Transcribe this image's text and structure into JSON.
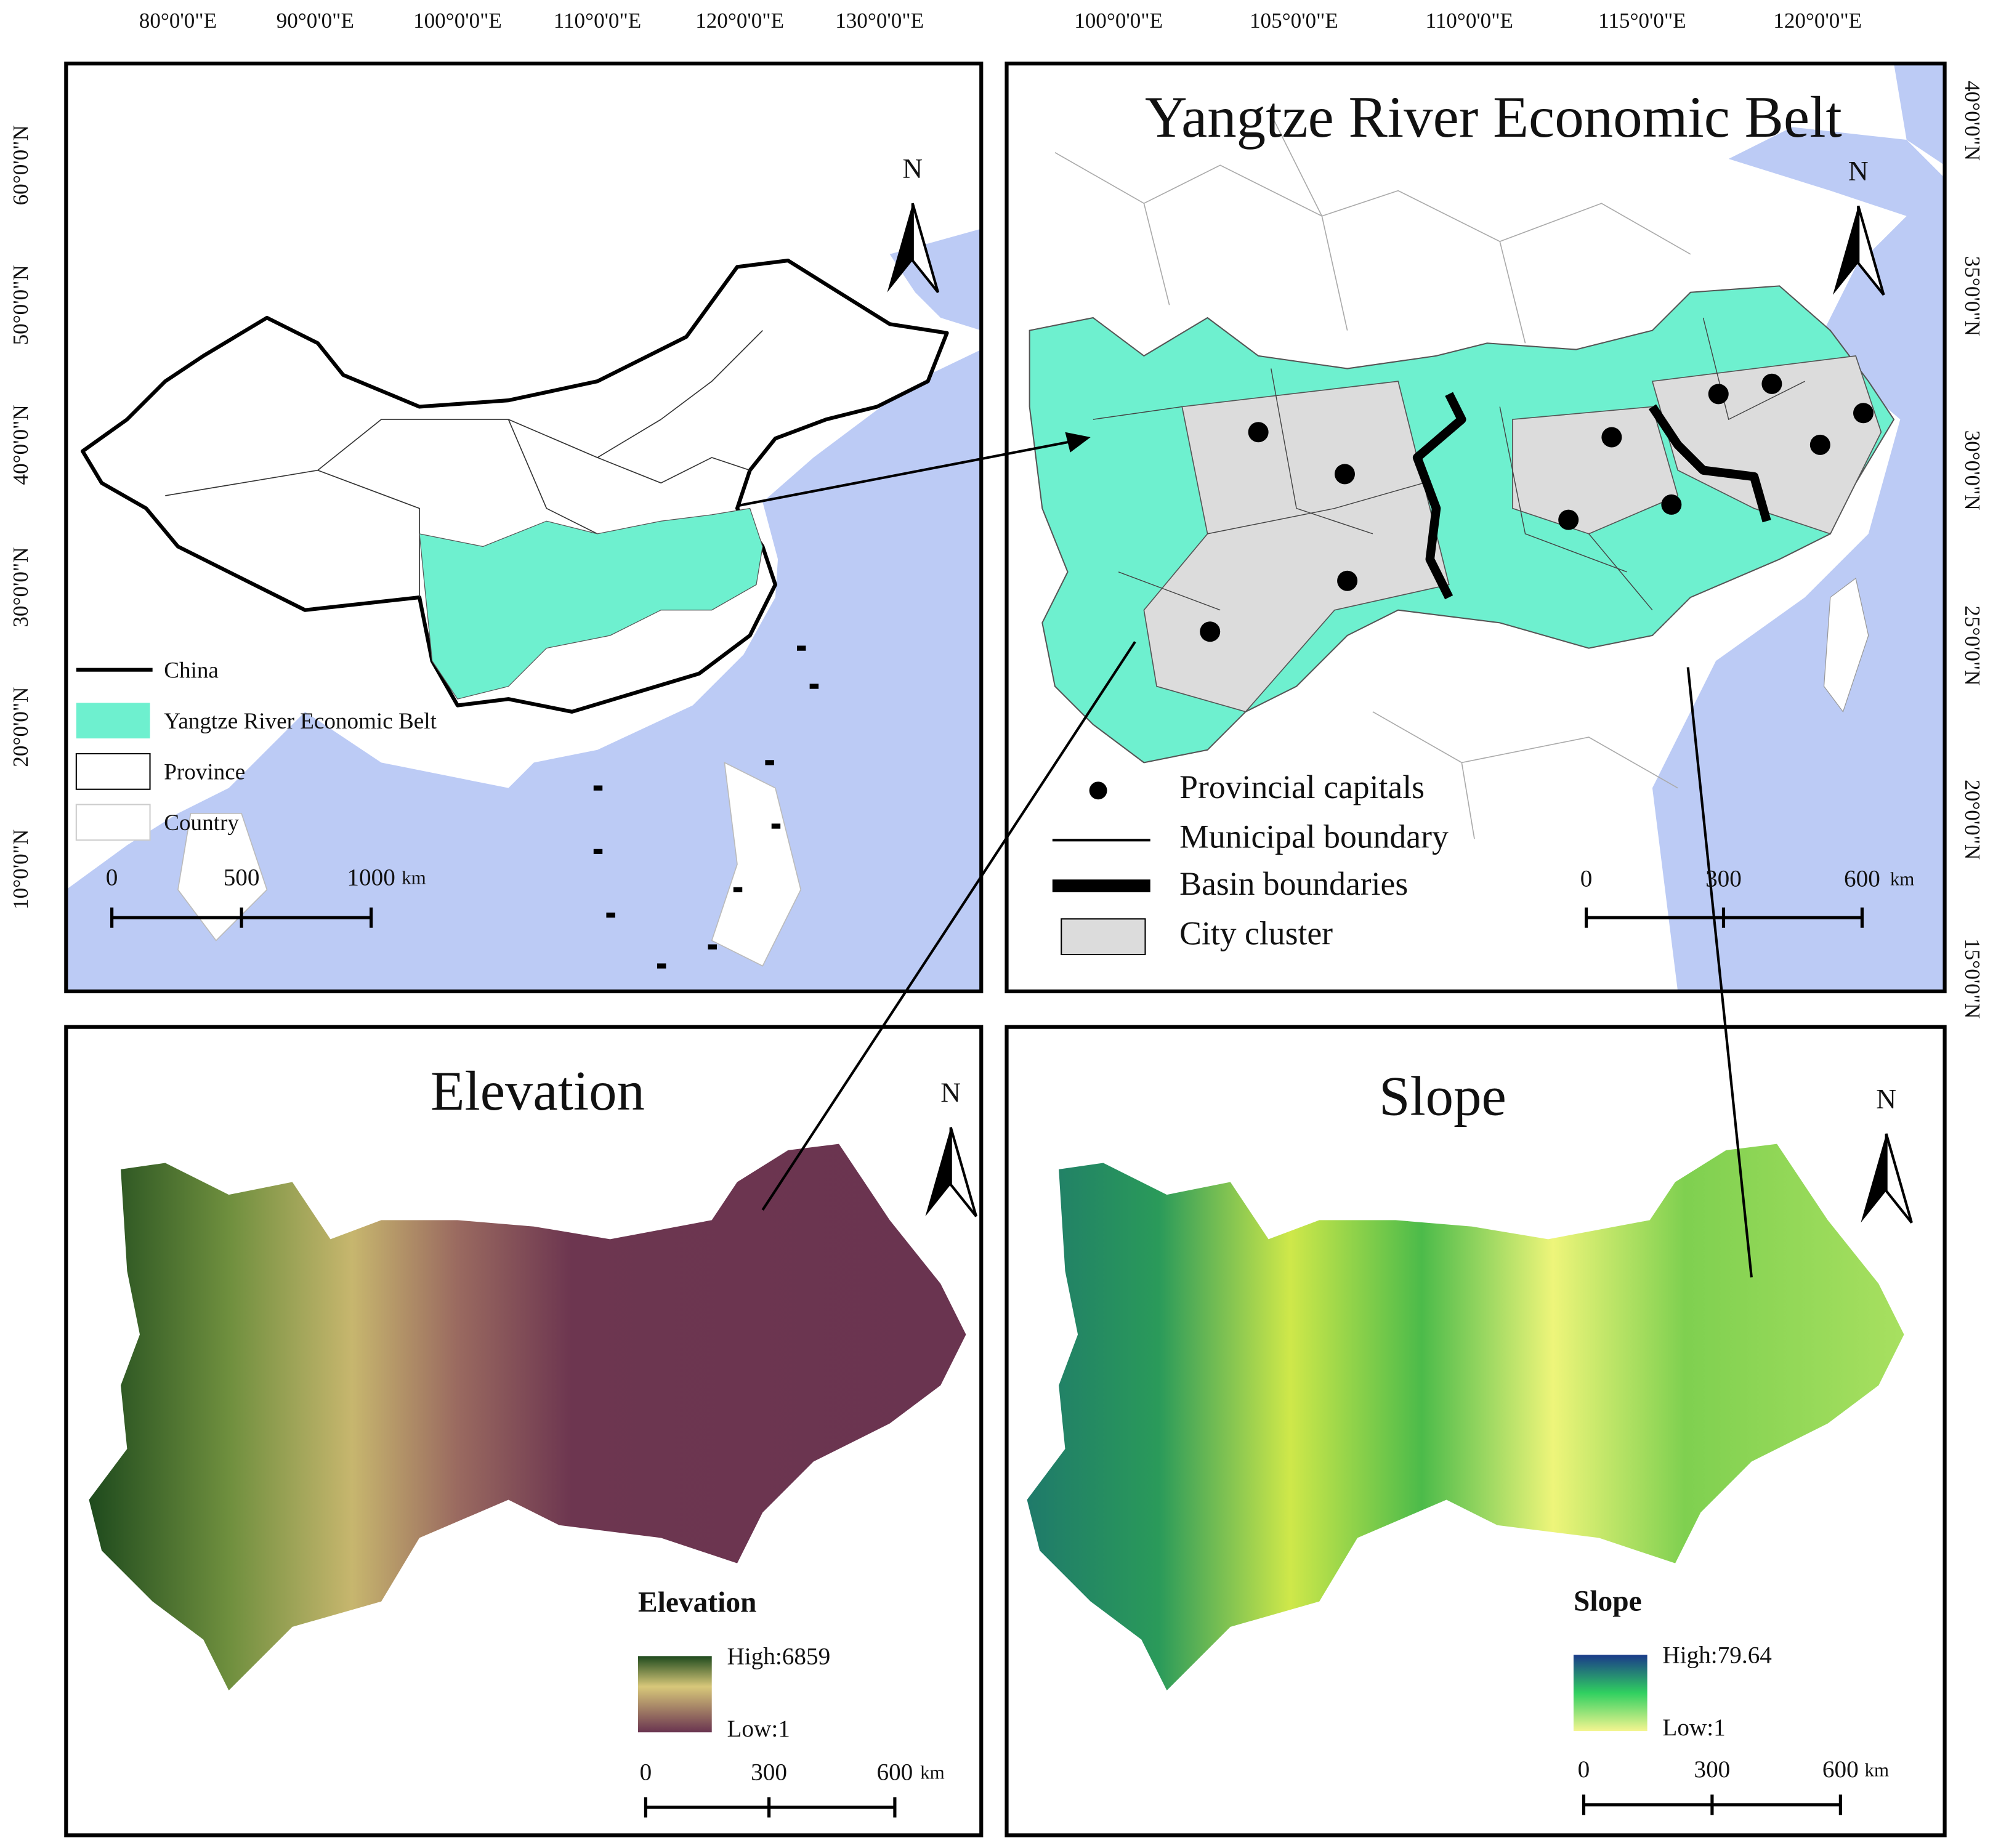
{
  "map_overview": {
    "lon_labels": [
      "80°0'0\"E",
      "90°0'0\"E",
      "100°0'0\"E",
      "110°0'0\"E",
      "120°0'0\"E",
      "130°0'0\"E"
    ],
    "lat_labels": [
      "60°0'0\"N",
      "50°0'0\"N",
      "40°0'0\"N",
      "30°0'0\"N",
      "20°0'0\"N",
      "10°0'0\"N"
    ],
    "north": "N",
    "legend": [
      "China",
      "Yangtze River Economic Belt",
      "Province",
      "Country"
    ],
    "scale_bar": {
      "ticks": [
        0,
        500,
        1000
      ],
      "unit": "km"
    }
  },
  "map_belt": {
    "title": "Yangtze River Economic Belt",
    "lon_labels": [
      "100°0'0\"E",
      "105°0'0\"E",
      "110°0'0\"E",
      "115°0'0\"E",
      "120°0'0\"E"
    ],
    "lat_labels": [
      "40°0'0\"N",
      "35°0'0\"N",
      "30°0'0\"N",
      "25°0'0\"N",
      "20°0'0\"N",
      "15°0'0\"N"
    ],
    "north": "N",
    "legend": [
      "Provincial capitals",
      "Municipal boundary",
      "Basin boundaries",
      "City cluster"
    ],
    "scale_bar": {
      "ticks": [
        0,
        300,
        600
      ],
      "unit": "km"
    }
  },
  "map_elevation": {
    "title": "Elevation",
    "north": "N",
    "legend": {
      "title": "Elevation",
      "high": "High:6859",
      "low": "Low:1"
    },
    "scale_bar": {
      "ticks": [
        0,
        300,
        600
      ],
      "unit": "km"
    }
  },
  "map_slope": {
    "title": "Slope",
    "north": "N",
    "legend": {
      "title": "Slope",
      "high": "High:79.64",
      "low": "Low:1"
    },
    "scale_bar": {
      "ticks": [
        0,
        300,
        600
      ],
      "unit": "km"
    }
  }
}
